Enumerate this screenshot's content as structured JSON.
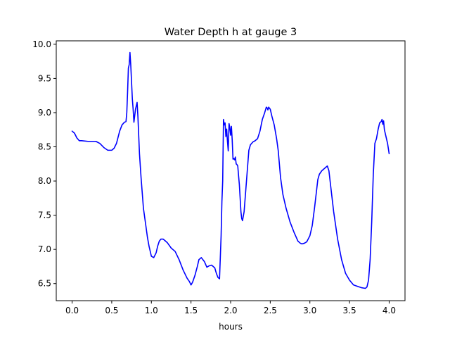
{
  "chart_data": {
    "type": "line",
    "title": "Water Depth h at gauge 3",
    "xlabel": "hours",
    "ylabel": "",
    "xlim": [
      -0.2,
      4.2
    ],
    "ylim": [
      6.25,
      10.05
    ],
    "xticks": [
      0.0,
      0.5,
      1.0,
      1.5,
      2.0,
      2.5,
      3.0,
      3.5,
      4.0
    ],
    "xtick_labels": [
      "0.0",
      "0.5",
      "1.0",
      "1.5",
      "2.0",
      "2.5",
      "3.0",
      "3.5",
      "4.0"
    ],
    "yticks": [
      6.5,
      7.0,
      7.5,
      8.0,
      8.5,
      9.0,
      9.5,
      10.0
    ],
    "ytick_labels": [
      "6.5",
      "7.0",
      "7.5",
      "8.0",
      "8.5",
      "9.0",
      "9.5",
      "10.0"
    ],
    "grid": false,
    "series": [
      {
        "color": "#0000ff",
        "x": [
          0.0,
          0.03,
          0.06,
          0.09,
          0.12,
          0.2,
          0.3,
          0.35,
          0.4,
          0.45,
          0.5,
          0.53,
          0.56,
          0.6,
          0.63,
          0.66,
          0.68,
          0.69,
          0.7,
          0.71,
          0.72,
          0.73,
          0.74,
          0.75,
          0.76,
          0.77,
          0.78,
          0.8,
          0.82,
          0.83,
          0.85,
          0.87,
          0.9,
          0.93,
          0.95,
          0.97,
          1.0,
          1.03,
          1.06,
          1.08,
          1.1,
          1.12,
          1.15,
          1.18,
          1.2,
          1.25,
          1.3,
          1.35,
          1.4,
          1.45,
          1.48,
          1.5,
          1.52,
          1.55,
          1.58,
          1.6,
          1.63,
          1.67,
          1.7,
          1.73,
          1.76,
          1.8,
          1.82,
          1.84,
          1.86,
          1.88,
          1.89,
          1.9,
          1.91,
          1.92,
          1.93,
          1.94,
          1.95,
          1.96,
          1.97,
          1.98,
          1.99,
          2.0,
          2.01,
          2.02,
          2.03,
          2.04,
          2.05,
          2.06,
          2.07,
          2.08,
          2.09,
          2.1,
          2.11,
          2.12,
          2.13,
          2.14,
          2.15,
          2.17,
          2.2,
          2.23,
          2.25,
          2.28,
          2.31,
          2.34,
          2.37,
          2.4,
          2.43,
          2.45,
          2.46,
          2.47,
          2.48,
          2.5,
          2.52,
          2.55,
          2.58,
          2.6,
          2.63,
          2.66,
          2.7,
          2.75,
          2.8,
          2.85,
          2.88,
          2.9,
          2.93,
          2.96,
          3.0,
          3.03,
          3.06,
          3.08,
          3.1,
          3.12,
          3.15,
          3.18,
          3.2,
          3.22,
          3.24,
          3.26,
          3.3,
          3.35,
          3.4,
          3.45,
          3.5,
          3.55,
          3.6,
          3.65,
          3.7,
          3.72,
          3.74,
          3.76,
          3.78,
          3.8,
          3.82,
          3.84,
          3.86,
          3.88,
          3.9,
          3.91,
          3.92,
          3.93,
          3.94,
          3.96,
          3.98,
          4.0
        ],
        "y": [
          8.73,
          8.7,
          8.63,
          8.59,
          8.59,
          8.58,
          8.58,
          8.55,
          8.49,
          8.45,
          8.45,
          8.48,
          8.55,
          8.73,
          8.82,
          8.86,
          8.87,
          9.0,
          9.3,
          9.65,
          9.7,
          9.88,
          9.7,
          9.45,
          9.2,
          9.05,
          8.86,
          9.05,
          9.15,
          8.95,
          8.4,
          8.05,
          7.6,
          7.35,
          7.18,
          7.05,
          6.9,
          6.88,
          6.95,
          7.05,
          7.12,
          7.15,
          7.15,
          7.12,
          7.1,
          7.02,
          6.97,
          6.85,
          6.7,
          6.58,
          6.53,
          6.48,
          6.52,
          6.62,
          6.75,
          6.85,
          6.88,
          6.82,
          6.74,
          6.76,
          6.77,
          6.73,
          6.65,
          6.59,
          6.57,
          7.2,
          7.7,
          8.0,
          8.9,
          8.82,
          8.85,
          8.65,
          8.76,
          8.58,
          8.44,
          8.84,
          8.78,
          8.67,
          8.8,
          8.6,
          8.32,
          8.33,
          8.31,
          8.35,
          8.25,
          8.24,
          8.22,
          8.08,
          7.95,
          7.75,
          7.55,
          7.45,
          7.42,
          7.55,
          8.0,
          8.45,
          8.53,
          8.57,
          8.59,
          8.62,
          8.73,
          8.9,
          9.0,
          9.08,
          9.07,
          9.04,
          9.08,
          9.05,
          8.95,
          8.82,
          8.62,
          8.45,
          8.05,
          7.8,
          7.6,
          7.4,
          7.25,
          7.12,
          7.09,
          7.08,
          7.09,
          7.11,
          7.2,
          7.35,
          7.62,
          7.82,
          8.02,
          8.1,
          8.15,
          8.18,
          8.2,
          8.22,
          8.15,
          7.95,
          7.55,
          7.15,
          6.85,
          6.65,
          6.55,
          6.48,
          6.46,
          6.44,
          6.43,
          6.45,
          6.55,
          6.85,
          7.4,
          8.1,
          8.55,
          8.62,
          8.75,
          8.85,
          8.87,
          8.9,
          8.83,
          8.88,
          8.75,
          8.65,
          8.55,
          8.4
        ]
      }
    ]
  }
}
